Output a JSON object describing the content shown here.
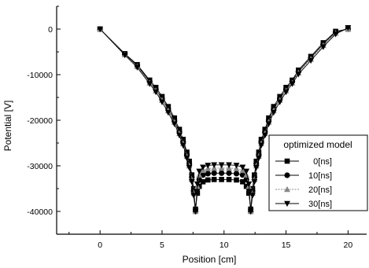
{
  "chart_data": {
    "type": "line",
    "title": "",
    "xlabel": "Position [cm]",
    "ylabel": "Potential [V]",
    "xlim": [
      -3.5,
      21.5
    ],
    "ylim": [
      -45000,
      5000
    ],
    "xticks": [
      0,
      5,
      10,
      15,
      20
    ],
    "yticks": [
      0,
      -10000,
      -20000,
      -30000,
      -40000
    ],
    "xtick_labels": [
      "0",
      "5",
      "10",
      "15",
      "20"
    ],
    "ytick_labels": [
      "0",
      "-10000",
      "-20000",
      "-30000",
      "-40000"
    ],
    "grid": false,
    "legend_position": "right",
    "legend_title": "optimized model",
    "series": [
      {
        "name": "0[ns]",
        "marker": "square",
        "color": "#000000",
        "x": [
          0,
          2,
          3,
          4,
          4.5,
          5,
          5.5,
          6,
          6.4,
          6.7,
          7,
          7.2,
          7.4,
          7.55,
          7.7,
          7.85,
          8.0,
          8.3,
          8.7,
          9.2,
          9.8,
          10.4,
          11.0,
          11.5,
          11.8,
          12.0,
          12.15,
          12.3,
          12.45,
          12.6,
          12.8,
          13.0,
          13.3,
          13.6,
          14.0,
          14.5,
          15,
          15.5,
          16,
          17,
          18,
          19,
          20
        ],
        "y": [
          0,
          -5400,
          -7800,
          -11200,
          -12800,
          -14800,
          -17000,
          -19500,
          -22000,
          -24200,
          -27000,
          -29000,
          -32000,
          -35000,
          -39500,
          -36000,
          -34500,
          -33500,
          -33100,
          -33000,
          -33000,
          -33000,
          -33100,
          -33500,
          -34500,
          -36000,
          -39500,
          -35000,
          -32000,
          -29000,
          -27000,
          -24200,
          -22000,
          -19500,
          -17000,
          -14800,
          -12800,
          -11200,
          -9000,
          -6000,
          -3000,
          -500,
          0
        ]
      },
      {
        "name": "10[ns]",
        "marker": "circle",
        "color": "#000000",
        "x": [
          0,
          2,
          3,
          4,
          4.5,
          5,
          5.5,
          6,
          6.4,
          6.7,
          7,
          7.2,
          7.4,
          7.55,
          7.7,
          7.85,
          8.0,
          8.3,
          8.7,
          9.2,
          9.8,
          10.4,
          11.0,
          11.5,
          11.8,
          12.0,
          12.15,
          12.3,
          12.45,
          12.6,
          12.8,
          13.0,
          13.3,
          13.6,
          14.0,
          14.5,
          15,
          15.5,
          16,
          17,
          18,
          19,
          20
        ],
        "y": [
          0,
          -5500,
          -8000,
          -11500,
          -13200,
          -15200,
          -17500,
          -20000,
          -22500,
          -24700,
          -27500,
          -29500,
          -32500,
          -35500,
          -40000,
          -35000,
          -33000,
          -32000,
          -31700,
          -31600,
          -31600,
          -31600,
          -31700,
          -32000,
          -33000,
          -35000,
          -40000,
          -35500,
          -32500,
          -29500,
          -27500,
          -24700,
          -22500,
          -20000,
          -17500,
          -15200,
          -13200,
          -11500,
          -9300,
          -6300,
          -3300,
          -700,
          0
        ]
      },
      {
        "name": "20[ns]",
        "marker": "triangle-up",
        "color": "#888888",
        "x": [
          0,
          2,
          3,
          4,
          4.5,
          5,
          5.5,
          6,
          6.4,
          6.7,
          7,
          7.2,
          7.4,
          7.55,
          7.7,
          7.85,
          8.0,
          8.3,
          8.7,
          9.2,
          9.8,
          10.4,
          11.0,
          11.5,
          11.8,
          12.0,
          12.15,
          12.3,
          12.45,
          12.6,
          12.8,
          13.0,
          13.3,
          13.6,
          14.0,
          14.5,
          15,
          15.5,
          16,
          17,
          18,
          19,
          20
        ],
        "y": [
          0,
          -5600,
          -8200,
          -11800,
          -13500,
          -15600,
          -17900,
          -20400,
          -22900,
          -25100,
          -27900,
          -30000,
          -33000,
          -36000,
          -40000,
          -34500,
          -32000,
          -31000,
          -30600,
          -30500,
          -30500,
          -30500,
          -30600,
          -31000,
          -32000,
          -34500,
          -40000,
          -36000,
          -33000,
          -30000,
          -27900,
          -25100,
          -22900,
          -20400,
          -17900,
          -15600,
          -13500,
          -11800,
          -9600,
          -6600,
          -3600,
          -900,
          0
        ]
      },
      {
        "name": "30[ns]",
        "marker": "triangle-down",
        "color": "#000000",
        "x": [
          0,
          2,
          3,
          4,
          4.5,
          5,
          5.5,
          6,
          6.4,
          6.7,
          7,
          7.2,
          7.4,
          7.55,
          7.7,
          7.85,
          8.0,
          8.3,
          8.7,
          9.2,
          9.8,
          10.4,
          11.0,
          11.5,
          11.8,
          12.0,
          12.15,
          12.3,
          12.45,
          12.6,
          12.8,
          13.0,
          13.3,
          13.6,
          14.0,
          14.5,
          15,
          15.5,
          16,
          17,
          18,
          19,
          20
        ],
        "y": [
          0,
          -5700,
          -8400,
          -12000,
          -13800,
          -16000,
          -18300,
          -20800,
          -23300,
          -25500,
          -28300,
          -30400,
          -33500,
          -36500,
          -40000,
          -34000,
          -31200,
          -30300,
          -29900,
          -29800,
          -29800,
          -29800,
          -29900,
          -30300,
          -31200,
          -34000,
          -40000,
          -36500,
          -33500,
          -30400,
          -28300,
          -25500,
          -23300,
          -20800,
          -18300,
          -16000,
          -13800,
          -12000,
          -9900,
          -6900,
          -3900,
          -1100,
          300
        ]
      }
    ]
  }
}
